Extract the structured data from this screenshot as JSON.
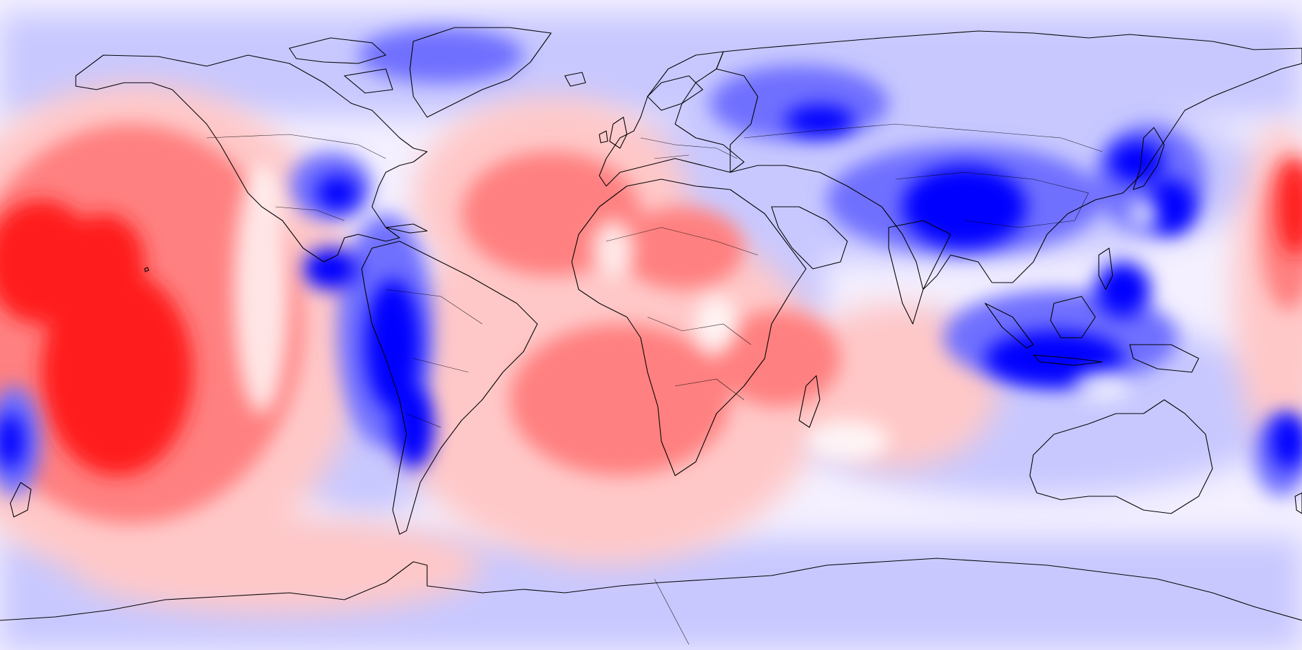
{
  "map": {
    "projection": "equirectangular",
    "central_longitude": -150,
    "variable_type": "diverging scalar anomaly field (filled contours)",
    "colormap": "bwr",
    "colormap_stops": [
      "#0000ff",
      "#ffffff",
      "#ff0000"
    ],
    "background_color": "#ffffff",
    "coastline_color": "#000000",
    "has_colorbar": false,
    "has_title": false,
    "notable_features": [
      {
        "name": "central-pacific-positive-anomaly",
        "sign": "positive",
        "color": "#ff0000"
      },
      {
        "name": "andes-negative-anomaly",
        "sign": "negative",
        "color": "#0000ff"
      },
      {
        "name": "tibetan-plateau-negative-anomaly",
        "sign": "negative",
        "color": "#0000ff"
      },
      {
        "name": "maritime-continent-negative-anomaly",
        "sign": "negative",
        "color": "#0000ff"
      },
      {
        "name": "atlantic-africa-positive-anomaly",
        "sign": "positive",
        "color": "#ff4040"
      },
      {
        "name": "north-america-negative-anomaly",
        "sign": "negative",
        "color": "#4040ff"
      }
    ]
  }
}
